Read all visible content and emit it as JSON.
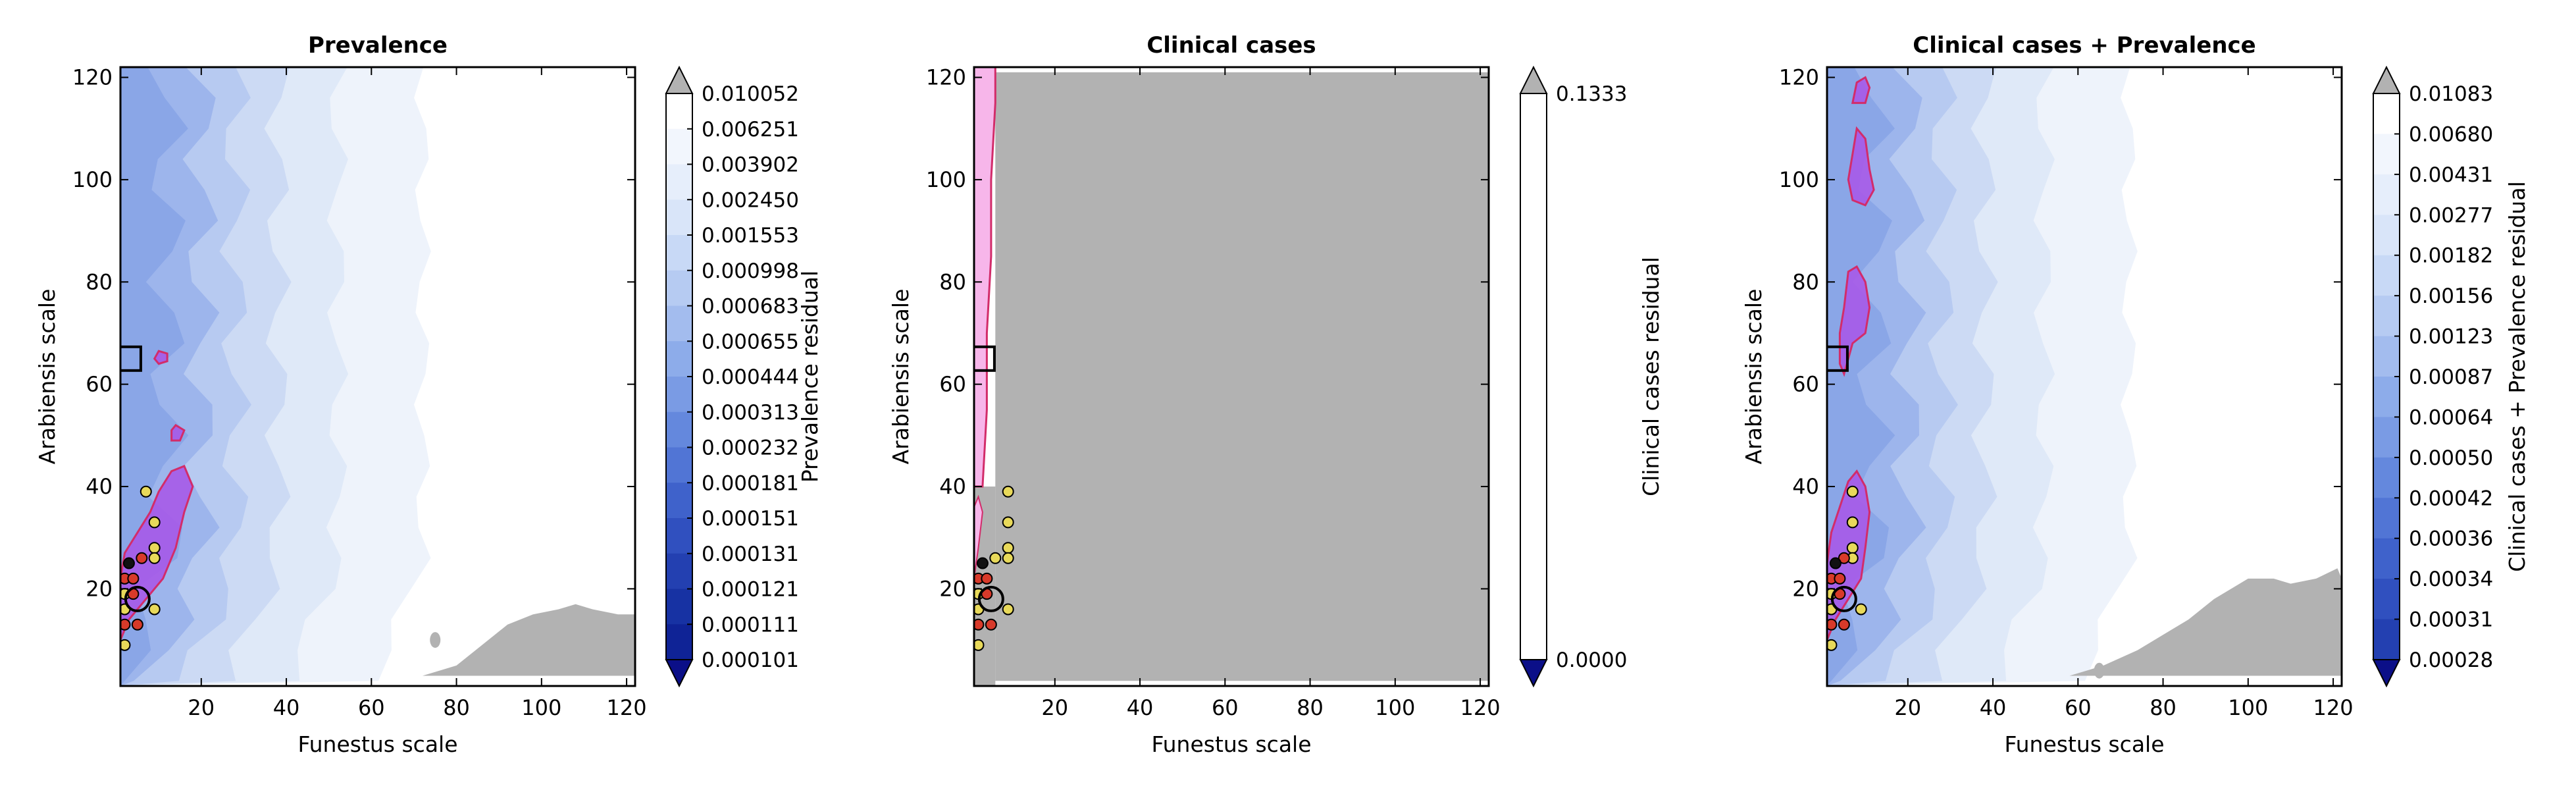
{
  "figure": {
    "xlabel": "Funestus scale",
    "ylabel": "Arabiensis scale"
  },
  "chart_data": [
    {
      "type": "contour",
      "title": "Prevalence",
      "xlabel": "Funestus scale",
      "ylabel": "Arabiensis scale",
      "xlim": [
        1,
        122
      ],
      "ylim": [
        1,
        122
      ],
      "xticks": [
        20,
        40,
        60,
        80,
        100,
        120
      ],
      "yticks": [
        20,
        40,
        60,
        80,
        100,
        120
      ],
      "colorbar_label": "Prevalence residual",
      "colorbar_levels": [
        "0.010052",
        "0.006251",
        "0.003902",
        "0.002450",
        "0.001553",
        "0.000998",
        "0.000683",
        "0.000655",
        "0.000444",
        "0.000313",
        "0.000232",
        "0.000181",
        "0.000151",
        "0.000131",
        "0.000121",
        "0.000111",
        "0.000101"
      ],
      "percentile_region": [
        [
          1,
          10
        ],
        [
          3,
          14
        ],
        [
          7,
          18
        ],
        [
          11,
          22
        ],
        [
          14,
          28
        ],
        [
          16,
          35
        ],
        [
          18,
          40
        ],
        [
          16,
          44
        ],
        [
          13,
          43
        ],
        [
          10,
          39
        ],
        [
          8,
          35
        ],
        [
          5,
          31
        ],
        [
          2,
          27
        ],
        [
          1,
          22
        ]
      ],
      "extra_regions": [
        [
          [
            9,
            65
          ],
          [
            10,
            66.5
          ],
          [
            12,
            66
          ],
          [
            12,
            64.5
          ],
          [
            10,
            64
          ]
        ],
        [
          [
            13,
            51
          ],
          [
            14,
            52
          ],
          [
            16,
            51
          ],
          [
            15,
            49
          ],
          [
            13,
            49
          ]
        ]
      ],
      "gray_region": [
        [
          72,
          3
        ],
        [
          80,
          5
        ],
        [
          86,
          9
        ],
        [
          92,
          13
        ],
        [
          98,
          15
        ],
        [
          104,
          16
        ],
        [
          108,
          17
        ],
        [
          112,
          16
        ],
        [
          118,
          15
        ],
        [
          122,
          15
        ],
        [
          122,
          3
        ]
      ],
      "points": [
        {
          "x": 7,
          "y": 39,
          "c": "yellow"
        },
        {
          "x": 9,
          "y": 33,
          "c": "yellow"
        },
        {
          "x": 9,
          "y": 28,
          "c": "yellow"
        },
        {
          "x": 9,
          "y": 26,
          "c": "yellow"
        },
        {
          "x": 6,
          "y": 26,
          "c": "red"
        },
        {
          "x": 3,
          "y": 25,
          "c": "black"
        },
        {
          "x": 2,
          "y": 22,
          "c": "red"
        },
        {
          "x": 4,
          "y": 22,
          "c": "red"
        },
        {
          "x": 2,
          "y": 19,
          "c": "yellow"
        },
        {
          "x": 4,
          "y": 19,
          "c": "red"
        },
        {
          "x": 2,
          "y": 16,
          "c": "yellow"
        },
        {
          "x": 9,
          "y": 16,
          "c": "yellow"
        },
        {
          "x": 2,
          "y": 13,
          "c": "red"
        },
        {
          "x": 5,
          "y": 13,
          "c": "red"
        },
        {
          "x": 2,
          "y": 9,
          "c": "yellow"
        }
      ],
      "open_circle": {
        "x": 5,
        "y": 18
      },
      "square_marker": {
        "x": 3,
        "y": 65
      }
    },
    {
      "type": "contour",
      "title": "Clinical cases",
      "xlabel": "Funestus scale",
      "ylabel": "Arabiensis scale",
      "xlim": [
        1,
        122
      ],
      "ylim": [
        1,
        122
      ],
      "xticks": [
        20,
        40,
        60,
        80,
        100,
        120
      ],
      "yticks": [
        20,
        40,
        60,
        80,
        100,
        120
      ],
      "colorbar_label": "Clinical cases residual",
      "colorbar_levels": [
        "0.1333",
        "0.0000"
      ],
      "pink_strip": [
        [
          1,
          40
        ],
        [
          3,
          40
        ],
        [
          4,
          55
        ],
        [
          4,
          70
        ],
        [
          5,
          85
        ],
        [
          5,
          100
        ],
        [
          6,
          115
        ],
        [
          6,
          122
        ],
        [
          1,
          122
        ]
      ],
      "points": [
        {
          "x": 9,
          "y": 39,
          "c": "yellow"
        },
        {
          "x": 9,
          "y": 33,
          "c": "yellow"
        },
        {
          "x": 9,
          "y": 28,
          "c": "yellow"
        },
        {
          "x": 9,
          "y": 26,
          "c": "yellow"
        },
        {
          "x": 6,
          "y": 26,
          "c": "yellow"
        },
        {
          "x": 3,
          "y": 25,
          "c": "black"
        },
        {
          "x": 2,
          "y": 22,
          "c": "red"
        },
        {
          "x": 4,
          "y": 22,
          "c": "red"
        },
        {
          "x": 2,
          "y": 19,
          "c": "yellow"
        },
        {
          "x": 4,
          "y": 19,
          "c": "red"
        },
        {
          "x": 2,
          "y": 16,
          "c": "yellow"
        },
        {
          "x": 9,
          "y": 16,
          "c": "yellow"
        },
        {
          "x": 2,
          "y": 13,
          "c": "red"
        },
        {
          "x": 5,
          "y": 13,
          "c": "red"
        },
        {
          "x": 2,
          "y": 9,
          "c": "yellow"
        }
      ],
      "open_circle": {
        "x": 5,
        "y": 18
      },
      "square_marker": {
        "x": 3,
        "y": 65
      }
    },
    {
      "type": "contour",
      "title": "Clinical cases + Prevalence",
      "xlabel": "Funestus scale",
      "ylabel": "Arabiensis scale",
      "xlim": [
        1,
        122
      ],
      "ylim": [
        1,
        122
      ],
      "xticks": [
        20,
        40,
        60,
        80,
        100,
        120
      ],
      "yticks": [
        20,
        40,
        60,
        80,
        100,
        120
      ],
      "colorbar_label": "Clinical cases + Prevalence residual",
      "colorbar_levels": [
        "0.01083",
        "0.00680",
        "0.00431",
        "0.00277",
        "0.00182",
        "0.00156",
        "0.00123",
        "0.00087",
        "0.00064",
        "0.00050",
        "0.00042",
        "0.00036",
        "0.00034",
        "0.00031",
        "0.00028"
      ],
      "percentile_region": [
        [
          1,
          10
        ],
        [
          3,
          14
        ],
        [
          6,
          18
        ],
        [
          9,
          22
        ],
        [
          10,
          28
        ],
        [
          11,
          35
        ],
        [
          10,
          40
        ],
        [
          8,
          43
        ],
        [
          6,
          41
        ],
        [
          4,
          36
        ],
        [
          2,
          31
        ],
        [
          1,
          25
        ]
      ],
      "extra_regions": [
        [
          [
            5,
            62
          ],
          [
            7,
            68
          ],
          [
            10,
            70
          ],
          [
            11,
            75
          ],
          [
            10,
            80
          ],
          [
            8,
            83
          ],
          [
            6,
            82
          ],
          [
            5,
            75
          ],
          [
            4,
            70
          ],
          [
            4,
            64
          ]
        ],
        [
          [
            7,
            96
          ],
          [
            10,
            95
          ],
          [
            12,
            98
          ],
          [
            11,
            102
          ],
          [
            10,
            108
          ],
          [
            8,
            110
          ],
          [
            7,
            105
          ],
          [
            6,
            100
          ]
        ],
        [
          [
            7,
            115
          ],
          [
            8,
            119
          ],
          [
            10,
            120
          ],
          [
            11,
            118
          ],
          [
            10,
            115
          ]
        ]
      ],
      "gray_region": [
        [
          58,
          3
        ],
        [
          66,
          5
        ],
        [
          74,
          8
        ],
        [
          80,
          11
        ],
        [
          86,
          14
        ],
        [
          92,
          18
        ],
        [
          100,
          22
        ],
        [
          106,
          22
        ],
        [
          110,
          21
        ],
        [
          116,
          22
        ],
        [
          121,
          24
        ],
        [
          122,
          22
        ],
        [
          122,
          3
        ]
      ],
      "points": [
        {
          "x": 7,
          "y": 39,
          "c": "yellow"
        },
        {
          "x": 7,
          "y": 33,
          "c": "yellow"
        },
        {
          "x": 7,
          "y": 28,
          "c": "yellow"
        },
        {
          "x": 7,
          "y": 26,
          "c": "yellow"
        },
        {
          "x": 5,
          "y": 26,
          "c": "red"
        },
        {
          "x": 3,
          "y": 25,
          "c": "black"
        },
        {
          "x": 2,
          "y": 22,
          "c": "red"
        },
        {
          "x": 4,
          "y": 22,
          "c": "red"
        },
        {
          "x": 2,
          "y": 19,
          "c": "yellow"
        },
        {
          "x": 4,
          "y": 19,
          "c": "red"
        },
        {
          "x": 2,
          "y": 16,
          "c": "yellow"
        },
        {
          "x": 9,
          "y": 16,
          "c": "yellow"
        },
        {
          "x": 2,
          "y": 13,
          "c": "red"
        },
        {
          "x": 5,
          "y": 13,
          "c": "red"
        },
        {
          "x": 2,
          "y": 9,
          "c": "yellow"
        }
      ],
      "open_circle": {
        "x": 5,
        "y": 18
      },
      "square_marker": {
        "x": 3,
        "y": 65
      }
    }
  ],
  "colors": {
    "blue_scale": [
      "#eef3fb",
      "#dfe9f8",
      "#ccdaf4",
      "#b7caf1",
      "#9db5ec",
      "#8aa6e7"
    ],
    "gray": "#b2b2b2",
    "purple_fill": "#a855e8",
    "purple_edge": "#d22c6a",
    "pink_fill": "#f7b6ea",
    "yellow": "#e8d95a",
    "red": "#d83a2a",
    "black": "#111111",
    "colorbar_dark": "#0b0f88",
    "colorbar_tip_gray": "#b2b2b2"
  }
}
